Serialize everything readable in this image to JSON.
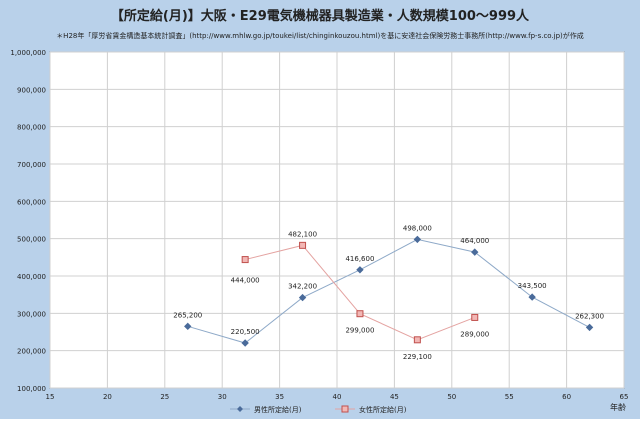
{
  "chart_data": {
    "type": "line",
    "title": "【所定給(月)】大阪・E29電気機械器具製造業・人数規模100～999人",
    "subtitle": "＊H28年「厚労省賃金構造基本統計調査」(http://www.mhlw.go.jp/toukei/list/chinginkouzou.html)を基に安達社会保険労務士事務所(http://www.fp-s.co.jp)が作成",
    "xlabel": "年齢",
    "ylabel": "",
    "xlim": [
      15,
      65
    ],
    "ylim": [
      100000,
      1000000
    ],
    "x_ticks": [
      "15",
      "20",
      "25",
      "30",
      "35",
      "40",
      "45",
      "50",
      "55",
      "60",
      "65"
    ],
    "y_ticks": [
      "100,000",
      "200,000",
      "300,000",
      "400,000",
      "500,000",
      "600,000",
      "700,000",
      "800,000",
      "900,000",
      "1,000,000"
    ],
    "grid": true,
    "legend_position": "bottom",
    "series": [
      {
        "name": "男性所定給(月)",
        "color": "#4a6b9a",
        "marker": "diamond",
        "x": [
          27,
          32,
          37,
          42,
          47,
          52,
          57,
          62
        ],
        "values": [
          265200,
          220500,
          342200,
          416600,
          498000,
          464000,
          343500,
          262300
        ],
        "labels": [
          "265,200",
          "220,500",
          "342,200",
          "416,600",
          "498,000",
          "464,000",
          "343,500",
          "262,300"
        ]
      },
      {
        "name": "女性所定給(月)",
        "color": "#c0504d",
        "marker": "square",
        "x": [
          32,
          37,
          42,
          47,
          52
        ],
        "values": [
          444000,
          482100,
          299000,
          229100,
          289000
        ],
        "labels": [
          "444,000",
          "482,100",
          "299,000",
          "229,100",
          "289,000"
        ]
      }
    ]
  }
}
